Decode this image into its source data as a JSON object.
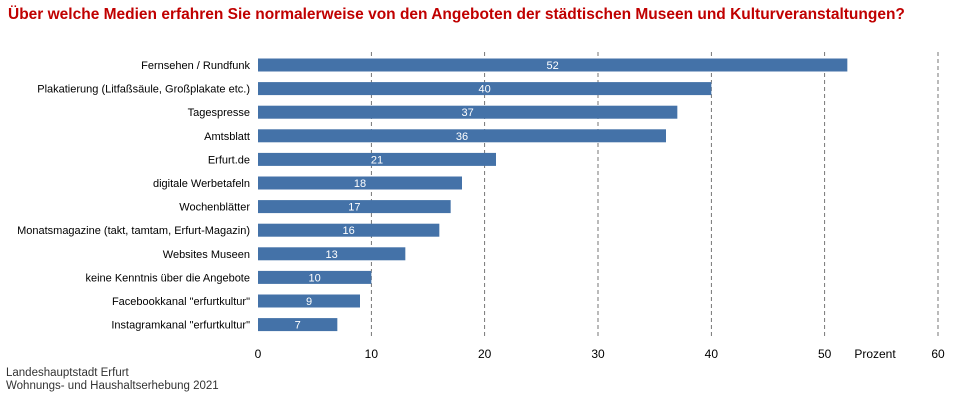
{
  "header": {
    "title": "Über welche Medien erfahren Sie normalerweise von den Angeboten der städtischen Museen und Kulturveranstaltungen?"
  },
  "source": {
    "line1": "Landeshauptstadt Erfurt",
    "line2": "Wohnungs- und Haushaltserhebung 2021"
  },
  "colors": {
    "title": "#c00000",
    "bar": "#4472a8",
    "bar_label": "#ffffff",
    "grid": "#555555",
    "text": "#000000"
  },
  "chart_data": {
    "type": "bar",
    "orientation": "horizontal",
    "categories": [
      "Fernsehen / Rundfunk",
      "Plakatierung (Litfaßsäule, Großplakate etc.)",
      "Tagespresse",
      "Amtsblatt",
      "Erfurt.de",
      "digitale Werbetafeln",
      "Wochenblätter",
      "Monatsmagazine (takt, tamtam, Erfurt-Magazin)",
      "Websites Museen",
      "keine Kenntnis über die Angebote",
      "Facebookkanal \"erfurtkultur\"",
      "Instagramkanal \"erfurtkultur\""
    ],
    "values": [
      52,
      40,
      37,
      36,
      21,
      18,
      17,
      16,
      13,
      10,
      9,
      7
    ],
    "data_labels": [
      "52",
      "40",
      "37",
      "36",
      "21",
      "18",
      "17",
      "16",
      "13",
      "10",
      "9",
      "7"
    ],
    "xlim": [
      0,
      60
    ],
    "xticks": [
      0,
      10,
      20,
      30,
      40,
      50,
      60
    ],
    "xtick_labels": [
      "0",
      "10",
      "20",
      "30",
      "40",
      "50",
      "60"
    ],
    "xlabel": "Prozent",
    "ylabel": "",
    "grid": "vertical dashed",
    "legend": "none"
  }
}
